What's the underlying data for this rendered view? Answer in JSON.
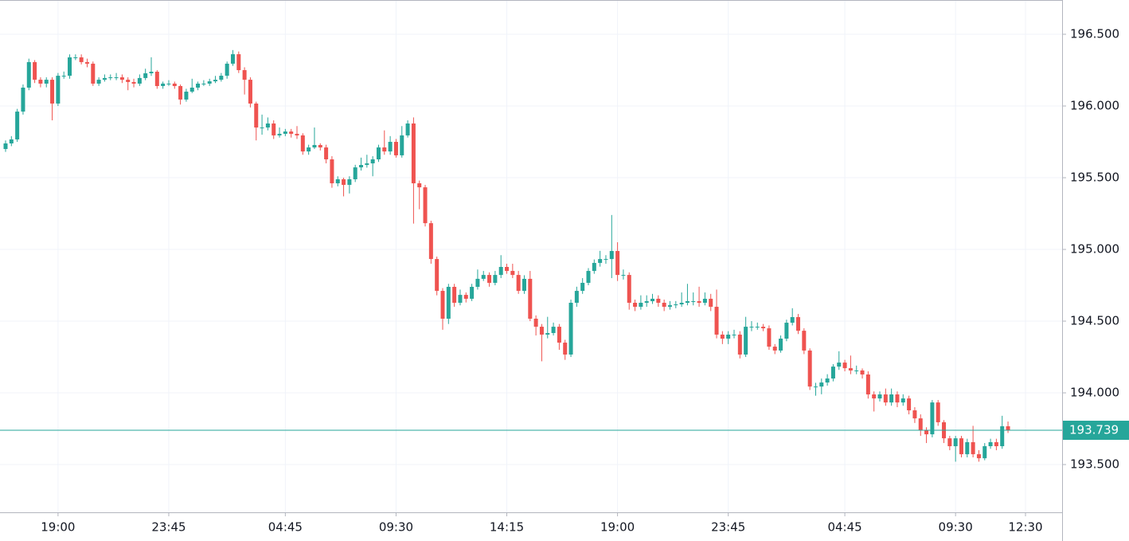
{
  "chart_data": {
    "type": "candlestick",
    "up_color": "#26a69a",
    "down_color": "#ef5350",
    "grid": true,
    "ylim": [
      193.167,
      196.739
    ],
    "yticks": [
      {
        "value": 196.5,
        "label": "196.500"
      },
      {
        "value": 196,
        "label": "196.000"
      },
      {
        "value": 195.5,
        "label": "195.500"
      },
      {
        "value": 195,
        "label": "195.000"
      },
      {
        "value": 194.5,
        "label": "194.500"
      },
      {
        "value": 194,
        "label": "194.000"
      },
      {
        "value": 193.5,
        "label": "193.500"
      }
    ],
    "last_price": 193.739,
    "last_price_color": "#26a69a",
    "categories": [
      null,
      null,
      null,
      null,
      null,
      null,
      null,
      null,
      null,
      "19:00",
      null,
      null,
      null,
      null,
      null,
      null,
      null,
      null,
      null,
      null,
      null,
      null,
      null,
      null,
      null,
      null,
      null,
      null,
      "23:45",
      null,
      null,
      null,
      null,
      null,
      null,
      null,
      null,
      null,
      null,
      null,
      null,
      null,
      null,
      null,
      null,
      null,
      null,
      null,
      "04:45",
      null,
      null,
      null,
      null,
      null,
      null,
      null,
      null,
      null,
      null,
      null,
      null,
      null,
      null,
      null,
      null,
      null,
      null,
      "09:30",
      null,
      null,
      null,
      null,
      null,
      null,
      null,
      null,
      null,
      null,
      null,
      null,
      null,
      null,
      null,
      null,
      null,
      null,
      "14:15",
      null,
      null,
      null,
      null,
      null,
      null,
      null,
      null,
      null,
      null,
      null,
      null,
      null,
      null,
      null,
      null,
      null,
      null,
      "19:00",
      null,
      null,
      null,
      null,
      null,
      null,
      null,
      null,
      null,
      null,
      null,
      null,
      null,
      null,
      null,
      null,
      null,
      null,
      "23:45",
      null,
      null,
      null,
      null,
      null,
      null,
      null,
      null,
      null,
      null,
      null,
      null,
      null,
      null,
      null,
      null,
      null,
      null,
      null,
      "04:45",
      null,
      null,
      null,
      null,
      null,
      null,
      null,
      null,
      null,
      null,
      null,
      null,
      null,
      null,
      null,
      null,
      null,
      null,
      "09:30",
      null,
      null,
      null,
      null,
      null,
      null,
      null,
      null,
      null,
      null,
      null,
      "12:30"
    ],
    "candles": [
      [
        195.7,
        195.76,
        195.68,
        195.739
      ],
      [
        195.739,
        195.79,
        195.72,
        195.767
      ],
      [
        195.767,
        195.98,
        195.75,
        195.961
      ],
      [
        195.961,
        196.15,
        195.94,
        196.128
      ],
      [
        196.128,
        196.33,
        196.11,
        196.306
      ],
      [
        196.306,
        196.32,
        196.16,
        196.183
      ],
      [
        196.183,
        196.2,
        196.13,
        196.156
      ],
      [
        196.156,
        196.2,
        196.13,
        196.183
      ],
      [
        196.183,
        196.2,
        195.9,
        196.017
      ],
      [
        196.017,
        196.23,
        196.0,
        196.211
      ],
      [
        196.211,
        196.24,
        196.19,
        196.211
      ],
      [
        196.211,
        196.36,
        196.19,
        196.339
      ],
      [
        196.339,
        196.36,
        196.32,
        196.339
      ],
      [
        196.339,
        196.36,
        196.29,
        196.306
      ],
      [
        196.306,
        196.33,
        196.27,
        196.295
      ],
      [
        196.295,
        196.31,
        196.14,
        196.156
      ],
      [
        196.156,
        196.2,
        196.14,
        196.183
      ],
      [
        196.183,
        196.22,
        196.17,
        196.195
      ],
      [
        196.195,
        196.22,
        196.18,
        196.2
      ],
      [
        196.2,
        196.23,
        196.18,
        196.2
      ],
      [
        196.2,
        196.22,
        196.16,
        196.183
      ],
      [
        196.183,
        196.2,
        196.11,
        196.167
      ],
      [
        196.167,
        196.19,
        196.13,
        196.156
      ],
      [
        196.156,
        196.22,
        196.14,
        196.195
      ],
      [
        196.195,
        196.26,
        196.18,
        196.228
      ],
      [
        196.228,
        196.34,
        196.21,
        196.239
      ],
      [
        196.239,
        196.25,
        196.12,
        196.139
      ],
      [
        196.139,
        196.17,
        196.12,
        196.156
      ],
      [
        196.156,
        196.18,
        196.14,
        196.156
      ],
      [
        196.156,
        196.17,
        196.12,
        196.139
      ],
      [
        196.139,
        196.15,
        196.01,
        196.045
      ],
      [
        196.045,
        196.12,
        196.03,
        196.1
      ],
      [
        196.1,
        196.19,
        196.09,
        196.128
      ],
      [
        196.128,
        196.17,
        196.11,
        196.156
      ],
      [
        196.156,
        196.18,
        196.14,
        196.156
      ],
      [
        196.156,
        196.19,
        196.14,
        196.172
      ],
      [
        196.172,
        196.21,
        196.16,
        196.183
      ],
      [
        196.183,
        196.23,
        196.17,
        196.211
      ],
      [
        196.211,
        196.31,
        196.19,
        196.295
      ],
      [
        196.295,
        196.39,
        196.28,
        196.361
      ],
      [
        196.361,
        196.38,
        196.23,
        196.25
      ],
      [
        196.25,
        196.27,
        196.08,
        196.183
      ],
      [
        196.183,
        196.2,
        195.99,
        196.017
      ],
      [
        196.017,
        196.03,
        195.76,
        195.85
      ],
      [
        195.85,
        195.94,
        195.8,
        195.85
      ],
      [
        195.85,
        195.92,
        195.83,
        195.878
      ],
      [
        195.878,
        195.9,
        195.77,
        195.795
      ],
      [
        195.795,
        195.85,
        195.78,
        195.806
      ],
      [
        195.806,
        195.84,
        195.79,
        195.822
      ],
      [
        195.822,
        195.84,
        195.78,
        195.806
      ],
      [
        195.806,
        195.86,
        195.77,
        195.795
      ],
      [
        195.795,
        195.81,
        195.66,
        195.683
      ],
      [
        195.683,
        195.73,
        195.66,
        195.711
      ],
      [
        195.711,
        195.85,
        195.7,
        195.728
      ],
      [
        195.728,
        195.74,
        195.69,
        195.711
      ],
      [
        195.711,
        195.73,
        195.6,
        195.628
      ],
      [
        195.628,
        195.65,
        195.43,
        195.461
      ],
      [
        195.461,
        195.51,
        195.44,
        195.489
      ],
      [
        195.489,
        195.5,
        195.37,
        195.45
      ],
      [
        195.45,
        195.51,
        195.39,
        195.489
      ],
      [
        195.489,
        195.59,
        195.47,
        195.572
      ],
      [
        195.572,
        195.64,
        195.55,
        195.589
      ],
      [
        195.589,
        195.66,
        195.57,
        195.6
      ],
      [
        195.6,
        195.65,
        195.51,
        195.628
      ],
      [
        195.628,
        195.73,
        195.61,
        195.711
      ],
      [
        195.711,
        195.83,
        195.66,
        195.683
      ],
      [
        195.683,
        195.79,
        195.66,
        195.75
      ],
      [
        195.75,
        195.77,
        195.64,
        195.656
      ],
      [
        195.656,
        195.86,
        195.64,
        195.795
      ],
      [
        195.795,
        195.9,
        195.78,
        195.878
      ],
      [
        195.878,
        195.92,
        195.18,
        195.461
      ],
      [
        195.461,
        195.48,
        195.28,
        195.433
      ],
      [
        195.433,
        195.45,
        195.16,
        195.183
      ],
      [
        195.183,
        195.2,
        194.9,
        194.933
      ],
      [
        194.933,
        194.95,
        194.68,
        194.711
      ],
      [
        194.711,
        194.73,
        194.44,
        194.517
      ],
      [
        194.517,
        194.76,
        194.48,
        194.739
      ],
      [
        194.739,
        194.76,
        194.6,
        194.628
      ],
      [
        194.628,
        194.72,
        194.61,
        194.683
      ],
      [
        194.683,
        194.7,
        194.63,
        194.656
      ],
      [
        194.656,
        194.76,
        194.64,
        194.739
      ],
      [
        194.739,
        194.86,
        194.72,
        194.795
      ],
      [
        194.795,
        194.85,
        194.78,
        194.822
      ],
      [
        194.822,
        194.84,
        194.74,
        194.767
      ],
      [
        194.767,
        194.85,
        194.75,
        194.822
      ],
      [
        194.822,
        194.96,
        194.8,
        194.878
      ],
      [
        194.878,
        194.9,
        194.83,
        194.85
      ],
      [
        194.85,
        194.9,
        194.8,
        194.822
      ],
      [
        194.822,
        194.85,
        194.69,
        194.711
      ],
      [
        194.711,
        194.82,
        194.69,
        194.795
      ],
      [
        194.795,
        194.85,
        194.5,
        194.517
      ],
      [
        194.517,
        194.54,
        194.4,
        194.461
      ],
      [
        194.461,
        194.48,
        194.22,
        194.406
      ],
      [
        194.406,
        194.53,
        194.38,
        194.417
      ],
      [
        194.417,
        194.49,
        194.4,
        194.461
      ],
      [
        194.461,
        194.48,
        194.3,
        194.35
      ],
      [
        194.35,
        194.37,
        194.23,
        194.267
      ],
      [
        194.267,
        194.65,
        194.25,
        194.628
      ],
      [
        194.628,
        194.74,
        194.6,
        194.711
      ],
      [
        194.711,
        194.8,
        194.69,
        194.767
      ],
      [
        194.767,
        194.87,
        194.75,
        194.85
      ],
      [
        194.85,
        194.93,
        194.83,
        194.906
      ],
      [
        194.906,
        194.99,
        194.88,
        194.933
      ],
      [
        194.933,
        194.96,
        194.9,
        194.933
      ],
      [
        194.933,
        195.24,
        194.8,
        194.989
      ],
      [
        194.989,
        195.05,
        194.78,
        194.822
      ],
      [
        194.822,
        194.86,
        194.79,
        194.822
      ],
      [
        194.822,
        194.84,
        194.58,
        194.628
      ],
      [
        194.628,
        194.65,
        194.57,
        194.6
      ],
      [
        194.6,
        194.68,
        194.58,
        194.628
      ],
      [
        194.628,
        194.68,
        194.6,
        194.639
      ],
      [
        194.639,
        194.69,
        194.62,
        194.656
      ],
      [
        194.656,
        194.68,
        194.6,
        194.628
      ],
      [
        194.628,
        194.65,
        194.57,
        194.6
      ],
      [
        194.6,
        194.64,
        194.58,
        194.611
      ],
      [
        194.611,
        194.64,
        194.59,
        194.617
      ],
      [
        194.617,
        194.7,
        194.6,
        194.628
      ],
      [
        194.628,
        194.76,
        194.61,
        194.639
      ],
      [
        194.639,
        194.7,
        194.61,
        194.639
      ],
      [
        194.639,
        194.74,
        194.6,
        194.628
      ],
      [
        194.628,
        194.7,
        194.61,
        194.656
      ],
      [
        194.656,
        194.69,
        194.57,
        194.6
      ],
      [
        194.6,
        194.72,
        194.38,
        194.406
      ],
      [
        194.406,
        194.43,
        194.34,
        194.378
      ],
      [
        194.378,
        194.43,
        194.34,
        194.406
      ],
      [
        194.406,
        194.44,
        194.38,
        194.406
      ],
      [
        194.406,
        194.43,
        194.24,
        194.267
      ],
      [
        194.267,
        194.53,
        194.25,
        194.461
      ],
      [
        194.461,
        194.5,
        194.43,
        194.461
      ],
      [
        194.461,
        194.49,
        194.44,
        194.461
      ],
      [
        194.461,
        194.48,
        194.43,
        194.45
      ],
      [
        194.45,
        194.47,
        194.3,
        194.322
      ],
      [
        194.322,
        194.34,
        194.27,
        194.295
      ],
      [
        194.295,
        194.4,
        194.28,
        194.378
      ],
      [
        194.378,
        194.51,
        194.36,
        194.489
      ],
      [
        194.489,
        194.59,
        194.47,
        194.528
      ],
      [
        194.528,
        194.55,
        194.41,
        194.433
      ],
      [
        194.433,
        194.45,
        194.27,
        194.295
      ],
      [
        194.295,
        194.31,
        194.02,
        194.044
      ],
      [
        194.044,
        194.07,
        193.98,
        194.044
      ],
      [
        194.044,
        194.1,
        193.99,
        194.072
      ],
      [
        194.072,
        194.13,
        194.05,
        194.1
      ],
      [
        194.1,
        194.2,
        194.08,
        194.183
      ],
      [
        194.183,
        194.29,
        194.16,
        194.211
      ],
      [
        194.211,
        194.23,
        194.15,
        194.172
      ],
      [
        194.172,
        194.26,
        194.13,
        194.156
      ],
      [
        194.156,
        194.19,
        194.13,
        194.156
      ],
      [
        194.156,
        194.17,
        194.1,
        194.128
      ],
      [
        194.128,
        194.15,
        193.96,
        193.989
      ],
      [
        193.989,
        194.01,
        193.87,
        193.961
      ],
      [
        193.961,
        194.01,
        193.94,
        193.989
      ],
      [
        193.989,
        194.03,
        193.91,
        193.933
      ],
      [
        193.933,
        194.03,
        193.91,
        193.989
      ],
      [
        193.989,
        194.01,
        193.9,
        193.933
      ],
      [
        193.933,
        193.99,
        193.91,
        193.961
      ],
      [
        193.961,
        193.98,
        193.85,
        193.878
      ],
      [
        193.878,
        193.9,
        193.79,
        193.822
      ],
      [
        193.822,
        193.85,
        193.7,
        193.739
      ],
      [
        193.739,
        193.76,
        193.65,
        193.711
      ],
      [
        193.711,
        193.95,
        193.69,
        193.933
      ],
      [
        193.933,
        193.95,
        193.77,
        193.795
      ],
      [
        193.795,
        193.81,
        193.65,
        193.683
      ],
      [
        193.683,
        193.7,
        193.6,
        193.628
      ],
      [
        193.628,
        193.7,
        193.52,
        193.683
      ],
      [
        193.683,
        193.7,
        193.55,
        193.572
      ],
      [
        193.572,
        193.68,
        193.55,
        193.656
      ],
      [
        193.656,
        193.77,
        193.55,
        193.572
      ],
      [
        193.572,
        193.6,
        193.52,
        193.544
      ],
      [
        193.544,
        193.65,
        193.53,
        193.628
      ],
      [
        193.628,
        193.68,
        193.61,
        193.656
      ],
      [
        193.656,
        193.68,
        193.6,
        193.628
      ],
      [
        193.628,
        193.84,
        193.61,
        193.767
      ],
      [
        193.767,
        193.8,
        193.72,
        193.739
      ],
      null,
      null,
      null
    ]
  }
}
